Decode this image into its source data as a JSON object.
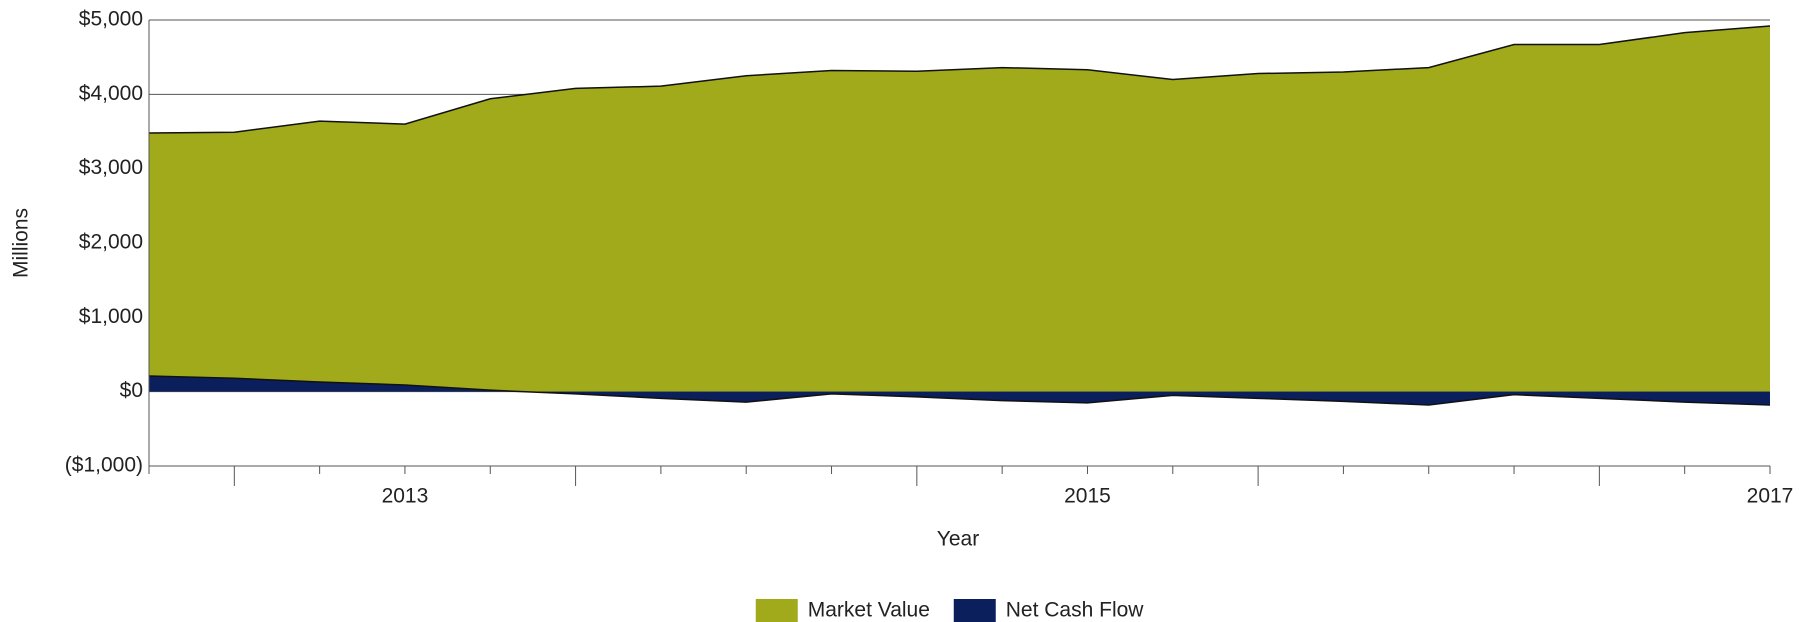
{
  "chart_data": {
    "type": "area",
    "y_label": "Millions",
    "x_label": "Year",
    "categories": [
      null,
      null,
      null,
      "2013",
      null,
      null,
      null,
      null,
      null,
      null,
      null,
      "2015",
      null,
      null,
      null,
      null,
      null,
      null,
      null,
      "2017"
    ],
    "series": [
      {
        "name": "Market Value",
        "color": "#a0aa1a",
        "values": [
          3480,
          3490,
          3640,
          3600,
          3940,
          4080,
          4110,
          4250,
          4320,
          4310,
          4360,
          4330,
          4200,
          4280,
          4300,
          4360,
          4670,
          4670,
          4830,
          4920
        ]
      },
      {
        "name": "Net Cash Flow",
        "color": "#0a1f5c",
        "values": [
          210,
          180,
          130,
          90,
          20,
          -30,
          -90,
          -140,
          -30,
          -70,
          -120,
          -150,
          -50,
          -90,
          -130,
          -180,
          -40,
          -90,
          -140,
          -180
        ]
      }
    ],
    "ylim": [
      -1000,
      5000
    ],
    "yticks": [
      {
        "value": -1000,
        "label": "($1,000)"
      },
      {
        "value": 0,
        "label": "$0"
      },
      {
        "value": 1000,
        "label": "$1,000"
      },
      {
        "value": 2000,
        "label": "$2,000"
      },
      {
        "value": 3000,
        "label": "$3,000"
      },
      {
        "value": 4000,
        "label": "$4,000"
      },
      {
        "value": 5000,
        "label": "$5,000"
      }
    ],
    "grid": true,
    "legend": "bottom"
  }
}
